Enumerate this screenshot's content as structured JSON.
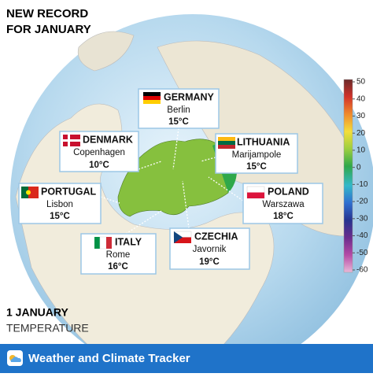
{
  "title": [
    "NEW RECORD",
    "FOR JANUARY"
  ],
  "callouts": [
    {
      "country": "GERMANY",
      "city": "Berlin",
      "temperature": "15°C"
    },
    {
      "country": "DENMARK",
      "city": "Copenhagen",
      "temperature": "10°C"
    },
    {
      "country": "LITHUANIA",
      "city": "Marijampole",
      "temperature": "15°C"
    },
    {
      "country": "PORTUGAL",
      "city": "Lisbon",
      "temperature": "15°C"
    },
    {
      "country": "POLAND",
      "city": "Warszawa",
      "temperature": "18°C"
    },
    {
      "country": "ITALY",
      "city": "Rome",
      "temperature": "16°C"
    },
    {
      "country": "CZECHIA",
      "city": "Javornik",
      "temperature": "19°C"
    }
  ],
  "colorbar": {
    "range": [
      -60,
      50
    ],
    "ticks": [
      50,
      40,
      30,
      20,
      10,
      0,
      -10,
      -20,
      -30,
      -40,
      -50,
      -60
    ]
  },
  "date": "1 JANUARY",
  "variable": "TEMPERATURE",
  "footer": "Weather and Climate Tracker"
}
